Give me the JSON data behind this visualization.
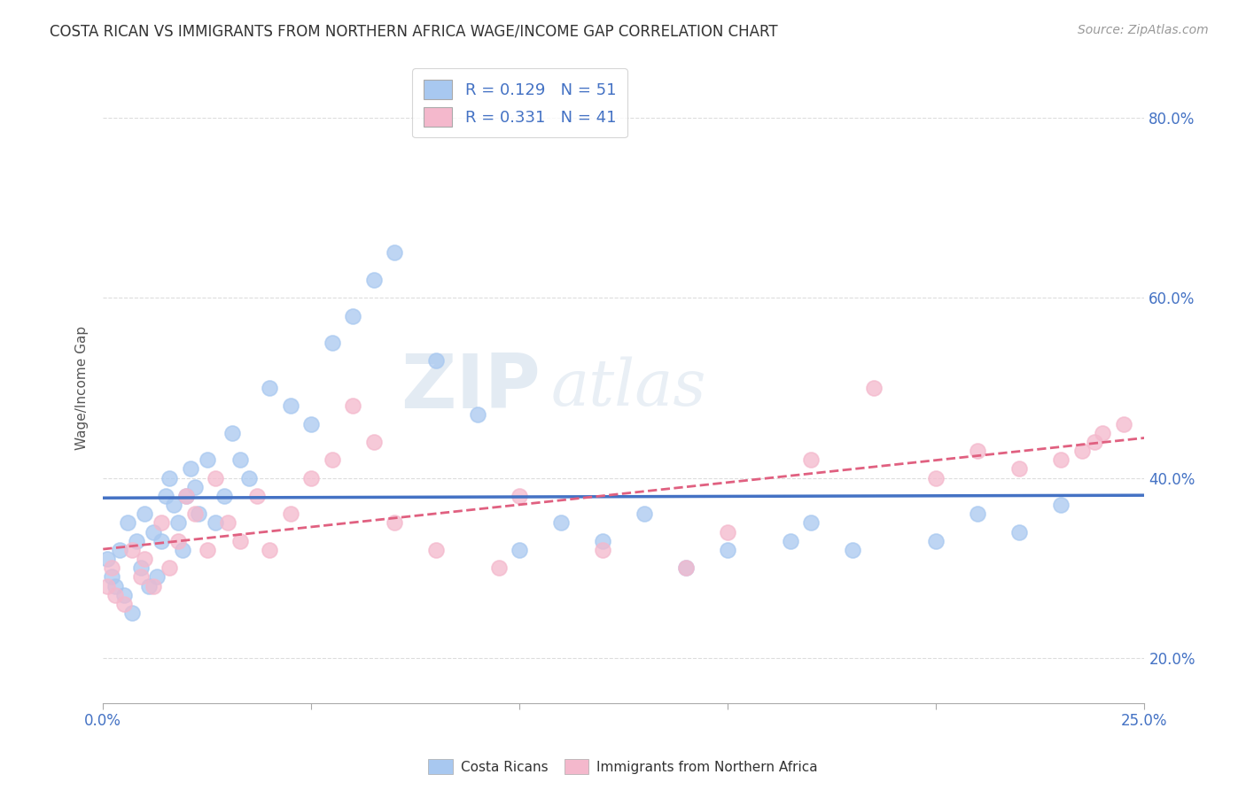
{
  "title": "COSTA RICAN VS IMMIGRANTS FROM NORTHERN AFRICA WAGE/INCOME GAP CORRELATION CHART",
  "source": "Source: ZipAtlas.com",
  "ylabel": "Wage/Income Gap",
  "xlim": [
    0.0,
    25.0
  ],
  "ylim": [
    15.0,
    85.0
  ],
  "yticks": [
    20.0,
    40.0,
    60.0,
    80.0
  ],
  "blue_R": 0.129,
  "blue_N": 51,
  "pink_R": 0.331,
  "pink_N": 41,
  "blue_color": "#A8C8F0",
  "pink_color": "#F4B8CC",
  "blue_line_color": "#4472C4",
  "pink_line_color": "#E06080",
  "legend_label_blue": "Costa Ricans",
  "legend_label_pink": "Immigrants from Northern Africa",
  "blue_points_x": [
    0.1,
    0.2,
    0.3,
    0.4,
    0.5,
    0.6,
    0.7,
    0.8,
    0.9,
    1.0,
    1.1,
    1.2,
    1.3,
    1.4,
    1.5,
    1.6,
    1.7,
    1.8,
    1.9,
    2.0,
    2.1,
    2.2,
    2.3,
    2.5,
    2.7,
    2.9,
    3.1,
    3.3,
    3.5,
    4.0,
    4.5,
    5.0,
    5.5,
    6.0,
    6.5,
    7.0,
    8.0,
    9.0,
    10.0,
    11.0,
    12.0,
    13.0,
    14.0,
    15.0,
    16.5,
    17.0,
    18.0,
    20.0,
    21.0,
    22.0,
    23.0
  ],
  "blue_points_y": [
    31.0,
    29.0,
    28.0,
    32.0,
    27.0,
    35.0,
    25.0,
    33.0,
    30.0,
    36.0,
    28.0,
    34.0,
    29.0,
    33.0,
    38.0,
    40.0,
    37.0,
    35.0,
    32.0,
    38.0,
    41.0,
    39.0,
    36.0,
    42.0,
    35.0,
    38.0,
    45.0,
    42.0,
    40.0,
    50.0,
    48.0,
    46.0,
    55.0,
    58.0,
    62.0,
    65.0,
    53.0,
    47.0,
    32.0,
    35.0,
    33.0,
    36.0,
    30.0,
    32.0,
    33.0,
    35.0,
    32.0,
    33.0,
    36.0,
    34.0,
    37.0
  ],
  "pink_points_x": [
    0.1,
    0.2,
    0.3,
    0.5,
    0.7,
    0.9,
    1.0,
    1.2,
    1.4,
    1.6,
    1.8,
    2.0,
    2.2,
    2.5,
    2.7,
    3.0,
    3.3,
    3.7,
    4.0,
    4.5,
    5.0,
    5.5,
    6.0,
    6.5,
    7.0,
    8.0,
    9.5,
    10.0,
    12.0,
    14.0,
    15.0,
    17.0,
    18.5,
    20.0,
    21.0,
    22.0,
    23.0,
    23.5,
    23.8,
    24.0,
    24.5
  ],
  "pink_points_y": [
    28.0,
    30.0,
    27.0,
    26.0,
    32.0,
    29.0,
    31.0,
    28.0,
    35.0,
    30.0,
    33.0,
    38.0,
    36.0,
    32.0,
    40.0,
    35.0,
    33.0,
    38.0,
    32.0,
    36.0,
    40.0,
    42.0,
    48.0,
    44.0,
    35.0,
    32.0,
    30.0,
    38.0,
    32.0,
    30.0,
    34.0,
    42.0,
    50.0,
    40.0,
    43.0,
    41.0,
    42.0,
    43.0,
    44.0,
    45.0,
    46.0
  ],
  "watermark_zip": "ZIP",
  "watermark_atlas": "atlas",
  "background_color": "#FFFFFF",
  "grid_color": "#DDDDDD"
}
